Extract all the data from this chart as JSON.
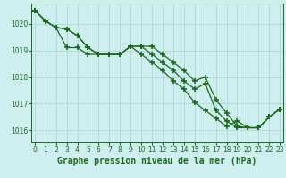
{
  "title": "Graphe pression niveau de la mer (hPa)",
  "bg_color": "#ceeef0",
  "grid_color": "#aed8da",
  "line_color": "#1a6b1a",
  "marker": "+",
  "marker_size": 4,
  "marker_ew": 1.2,
  "line_width": 0.9,
  "xlim": [
    -0.3,
    23.3
  ],
  "ylim": [
    1015.55,
    1020.75
  ],
  "yticks": [
    1016,
    1017,
    1018,
    1019,
    1020
  ],
  "xticks": [
    0,
    1,
    2,
    3,
    4,
    5,
    6,
    7,
    8,
    9,
    10,
    11,
    12,
    13,
    14,
    15,
    16,
    17,
    18,
    19,
    20,
    21,
    22,
    23
  ],
  "series": [
    [
      1020.5,
      1020.1,
      1019.85,
      1019.8,
      1019.55,
      1019.1,
      1018.85,
      1018.85,
      1018.85,
      1019.15,
      1019.15,
      1019.15,
      1018.85,
      1018.55,
      1018.25,
      1017.85,
      1018.0,
      1017.15,
      1016.65,
      1016.15,
      1016.1,
      1016.1,
      1016.5,
      1016.8
    ],
    [
      1020.5,
      1020.1,
      1019.85,
      1019.8,
      1019.55,
      1019.1,
      1018.85,
      1018.85,
      1018.85,
      1019.15,
      1019.15,
      1018.85,
      1018.55,
      1018.25,
      1017.85,
      1017.55,
      1017.75,
      1016.75,
      1016.35,
      1016.1,
      1016.1,
      1016.1,
      1016.5,
      1016.8
    ],
    [
      1020.5,
      1020.1,
      1019.85,
      1019.1,
      1019.1,
      1018.85,
      1018.85,
      1018.85,
      1018.85,
      1019.15,
      1018.85,
      1018.55,
      1018.25,
      1017.85,
      1017.55,
      1017.05,
      1016.75,
      1016.45,
      1016.15,
      1016.35,
      1016.1,
      1016.1,
      1016.5,
      1016.8
    ]
  ],
  "tick_fontsize": 5.5,
  "title_fontsize": 7,
  "title_fontweight": "bold",
  "title_fontstyle": "monospace"
}
